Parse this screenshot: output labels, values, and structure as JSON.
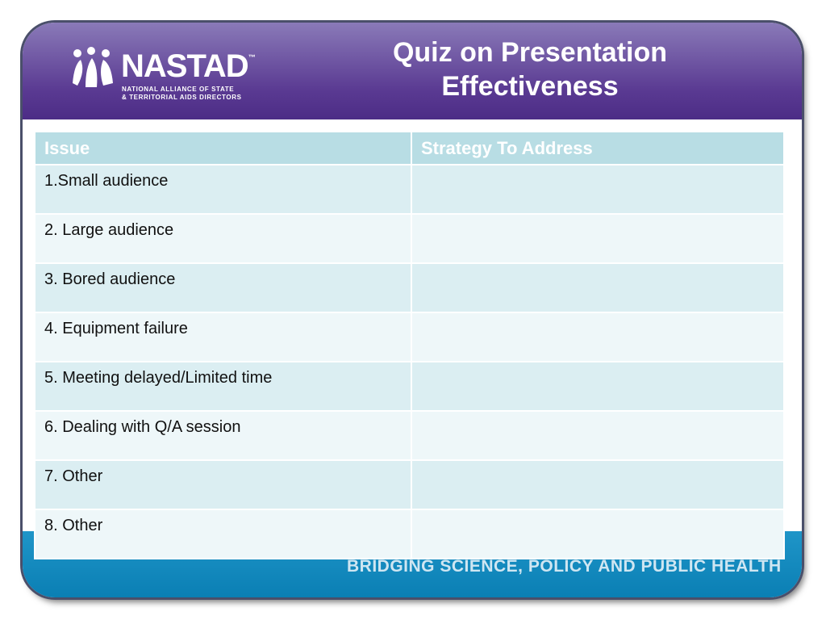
{
  "logo": {
    "name": "NASTAD",
    "trademark": "™",
    "line1": "NATIONAL ALLIANCE OF STATE",
    "line2": "& TERRITORIAL AIDS DIRECTORS"
  },
  "header": {
    "title": "Quiz on Presentation Effectiveness"
  },
  "table": {
    "columns": [
      "Issue",
      "Strategy To  Address"
    ],
    "rows": [
      "1.Small audience",
      "2. Large audience",
      "3. Bored audience",
      "4. Equipment failure",
      "5. Meeting delayed/Limited time",
      "6. Dealing with Q/A session",
      "7. Other",
      "8. Other"
    ]
  },
  "footer": {
    "tagline": "BRIDGING SCIENCE, POLICY AND PUBLIC HEALTH"
  }
}
